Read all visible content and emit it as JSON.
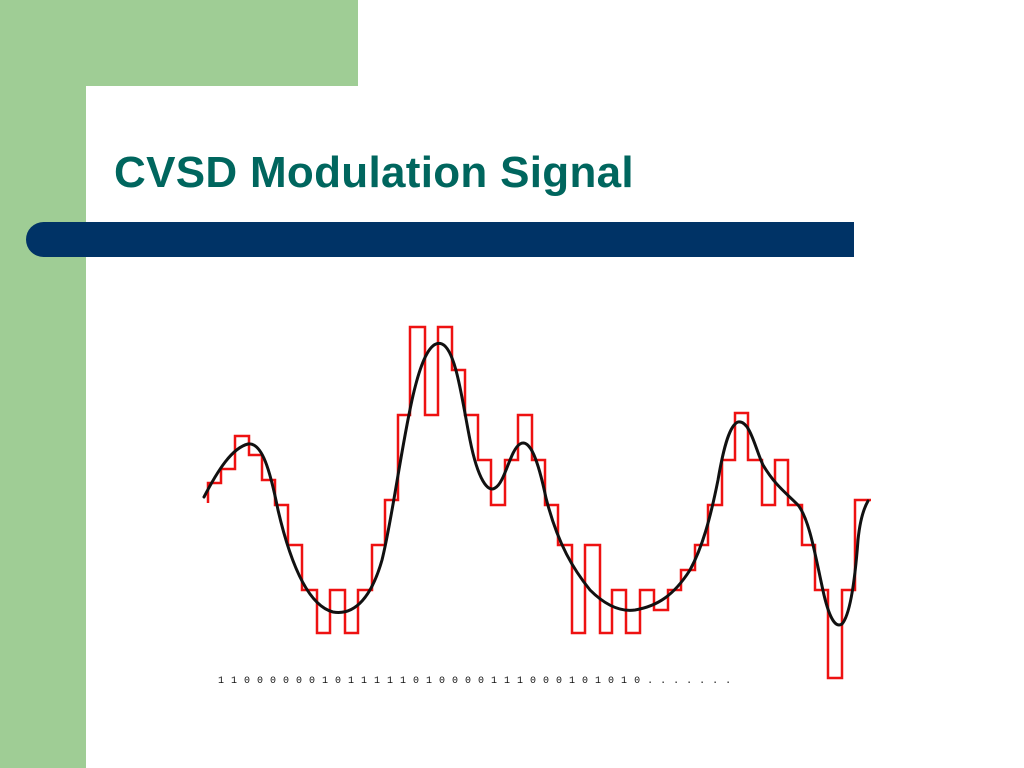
{
  "slide": {
    "title": "CVSD Modulation Signal",
    "bit_sequence": "1 1 0 0 0 0 0 0 1 0 1 1 1 1 1 0 1 0 0 0 0 1 1 1 0 0 0 1 0 1 0 1 0 . . . . . . ."
  },
  "colors": {
    "green_frame": "#9fcd95",
    "title_text": "#00665e",
    "title_bar": "#003366",
    "staircase": "#ee1111",
    "analog_signal": "#111111"
  }
}
